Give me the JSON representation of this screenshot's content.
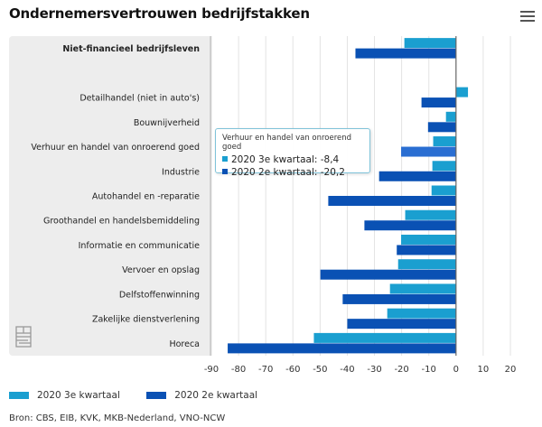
{
  "header": {
    "title": "Ondernemersvertrouwen bedrijfstakken",
    "menu_icon": "hamburger-menu-icon"
  },
  "logo": {
    "icon": "cbs-logo-icon"
  },
  "chart_data": {
    "type": "bar",
    "orientation": "horizontal",
    "title": "Ondernemersvertrouwen bedrijfstakken",
    "xlabel": "",
    "ylabel": "",
    "xlim": [
      -90,
      20
    ],
    "xticks": [
      -90,
      -80,
      -70,
      -60,
      -50,
      -40,
      -30,
      -20,
      -10,
      0,
      10,
      20
    ],
    "grid": true,
    "legend_position": "bottom-left",
    "categories": [
      "Niet-financieel bedrijfsleven",
      "",
      "Detailhandel (niet in auto's)",
      "Bouwnijverheid",
      "Verhuur en handel van onroerend goed",
      "Industrie",
      "Autohandel en -reparatie",
      "Groothandel en handelsbemiddeling",
      "Informatie en communicatie",
      "Vervoer en opslag",
      "Delfstoffenwinning",
      "Zakelijke dienstverlening",
      "Horeca"
    ],
    "bold_categories": [
      "Niet-financieel bedrijfsleven"
    ],
    "series": [
      {
        "name": "2020 3e kwartaal",
        "color": "#1a9fd0",
        "values": [
          -19.0,
          null,
          4.4,
          -3.7,
          -8.4,
          -8.7,
          -9.0,
          -18.7,
          -20.2,
          -21.3,
          -24.3,
          -25.3,
          -52.3
        ]
      },
      {
        "name": "2020 2e kwartaal",
        "color": "#0a51b4",
        "values": [
          -37.0,
          null,
          -12.7,
          -10.3,
          -20.2,
          -28.3,
          -47.0,
          -33.7,
          -21.8,
          -49.9,
          -41.7,
          -40.0,
          -84.0
        ]
      }
    ],
    "highlight": {
      "series": 1,
      "category": 4,
      "color": "#2a6ed2"
    }
  },
  "tooltip": {
    "heading": "Verhuur en handel van onroerend goed",
    "rows": [
      {
        "label": "2020 3e kwartaal: -8,4",
        "color": "#1a9fd0"
      },
      {
        "label": "2020 2e kwartaal: -20,2",
        "color": "#0a51b4"
      }
    ]
  },
  "legend": {
    "items": [
      {
        "label": "2020 3e kwartaal",
        "color": "#1a9fd0"
      },
      {
        "label": "2020 2e kwartaal",
        "color": "#0a51b4"
      }
    ]
  },
  "source": "Bron: CBS, EIB, KVK, MKB-Nederland, VNO-NCW"
}
